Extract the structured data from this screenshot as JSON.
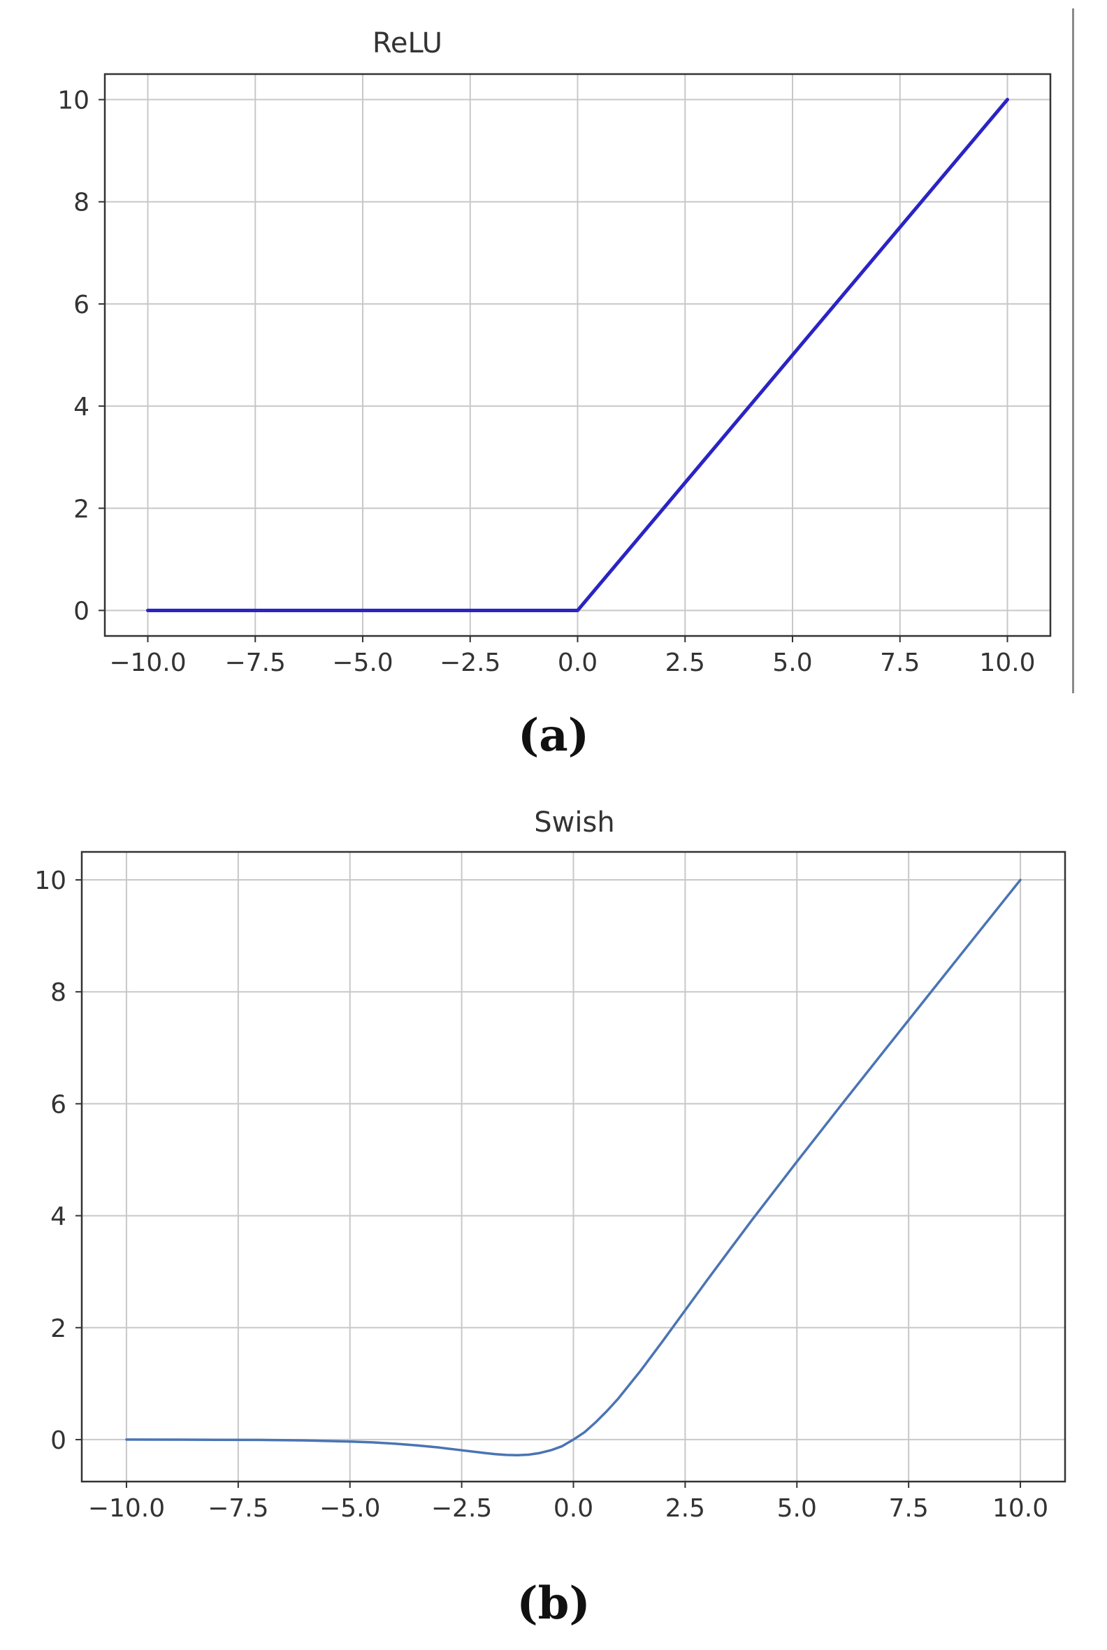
{
  "chart_data": [
    {
      "type": "line",
      "title": "ReLU",
      "xlabel": "",
      "ylabel": "",
      "xlim": [
        -11,
        11
      ],
      "ylim": [
        -0.5,
        10.5
      ],
      "xticks": [
        -10,
        -7.5,
        -5,
        -2.5,
        0,
        2.5,
        5,
        7.5,
        10
      ],
      "xtick_labels": [
        "−10.0",
        "−7.5",
        "−5.0",
        "−2.5",
        "0.0",
        "2.5",
        "5.0",
        "7.5",
        "10.0"
      ],
      "yticks": [
        0,
        2,
        4,
        6,
        8,
        10
      ],
      "ytick_labels": [
        "0",
        "2",
        "4",
        "6",
        "8",
        "10"
      ],
      "grid": true,
      "series": [
        {
          "color": "#2a24c4",
          "x": [
            -10,
            0,
            10
          ],
          "y": [
            0,
            0,
            10
          ]
        }
      ],
      "caption": "(a)"
    },
    {
      "type": "line",
      "title": "Swish",
      "xlabel": "",
      "ylabel": "",
      "xlim": [
        -11,
        11
      ],
      "ylim": [
        -0.75,
        10.5
      ],
      "xticks": [
        -10,
        -7.5,
        -5,
        -2.5,
        0,
        2.5,
        5,
        7.5,
        10
      ],
      "xtick_labels": [
        "−10.0",
        "−7.5",
        "−5.0",
        "−2.5",
        "0.0",
        "2.5",
        "5.0",
        "7.5",
        "10.0"
      ],
      "yticks": [
        0,
        2,
        4,
        6,
        8,
        10
      ],
      "ytick_labels": [
        "0",
        "2",
        "4",
        "6",
        "8",
        "10"
      ],
      "grid": true,
      "series": [
        {
          "color": "#4a74b4",
          "x": [
            -10,
            -9,
            -8,
            -7,
            -6,
            -5,
            -4.5,
            -4,
            -3.5,
            -3,
            -2.5,
            -2,
            -1.75,
            -1.5,
            -1.25,
            -1,
            -0.75,
            -0.5,
            -0.25,
            0,
            0.25,
            0.5,
            0.75,
            1,
            1.5,
            2,
            2.5,
            3,
            3.5,
            4,
            5,
            6,
            7,
            8,
            9,
            10
          ],
          "y": [
            0,
            -0.001,
            -0.003,
            -0.006,
            -0.015,
            -0.034,
            -0.05,
            -0.072,
            -0.103,
            -0.142,
            -0.19,
            -0.238,
            -0.259,
            -0.274,
            -0.279,
            -0.269,
            -0.239,
            -0.189,
            -0.117,
            0,
            0.133,
            0.311,
            0.511,
            0.731,
            1.227,
            1.762,
            2.31,
            2.858,
            3.394,
            3.928,
            4.966,
            5.985,
            6.994,
            7.997,
            8.999,
            9.999
          ]
        }
      ],
      "caption": "(b)"
    }
  ]
}
